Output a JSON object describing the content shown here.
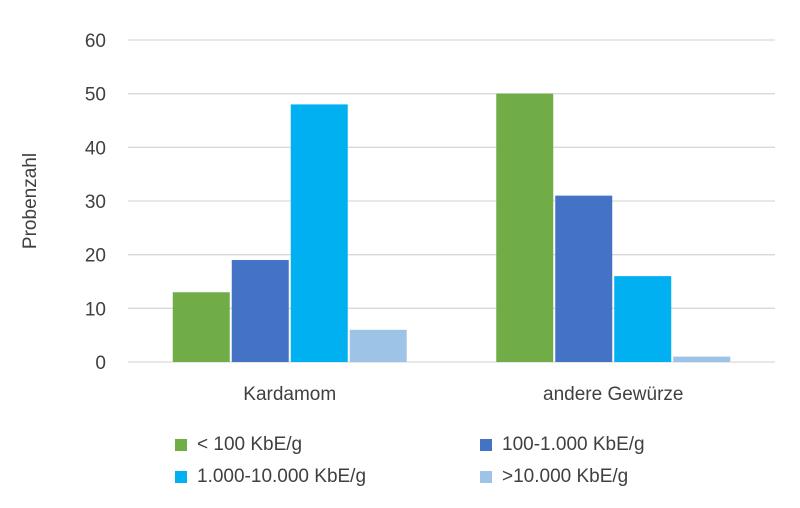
{
  "chart_data": {
    "type": "bar",
    "categories": [
      "Kardamom",
      "andere Gewürze"
    ],
    "series": [
      {
        "name": "< 100 KbE/g",
        "color": "#70ad47",
        "values": [
          13,
          50
        ]
      },
      {
        "name": "100-1.000 KbE/g",
        "color": "#4472c4",
        "values": [
          19,
          31
        ]
      },
      {
        "name": "1.000-10.000 KbE/g",
        "color": "#00b0f0",
        "values": [
          48,
          16
        ]
      },
      {
        "name": ">10.000 KbE/g",
        "color": "#9dc3e6",
        "values": [
          6,
          1
        ]
      }
    ],
    "title": "",
    "xlabel": "",
    "ylabel": "Probenzahl",
    "ylim": [
      0,
      60
    ],
    "yticks": [
      0,
      10,
      20,
      30,
      40,
      50,
      60
    ],
    "grid": true,
    "legend_position": "bottom"
  }
}
